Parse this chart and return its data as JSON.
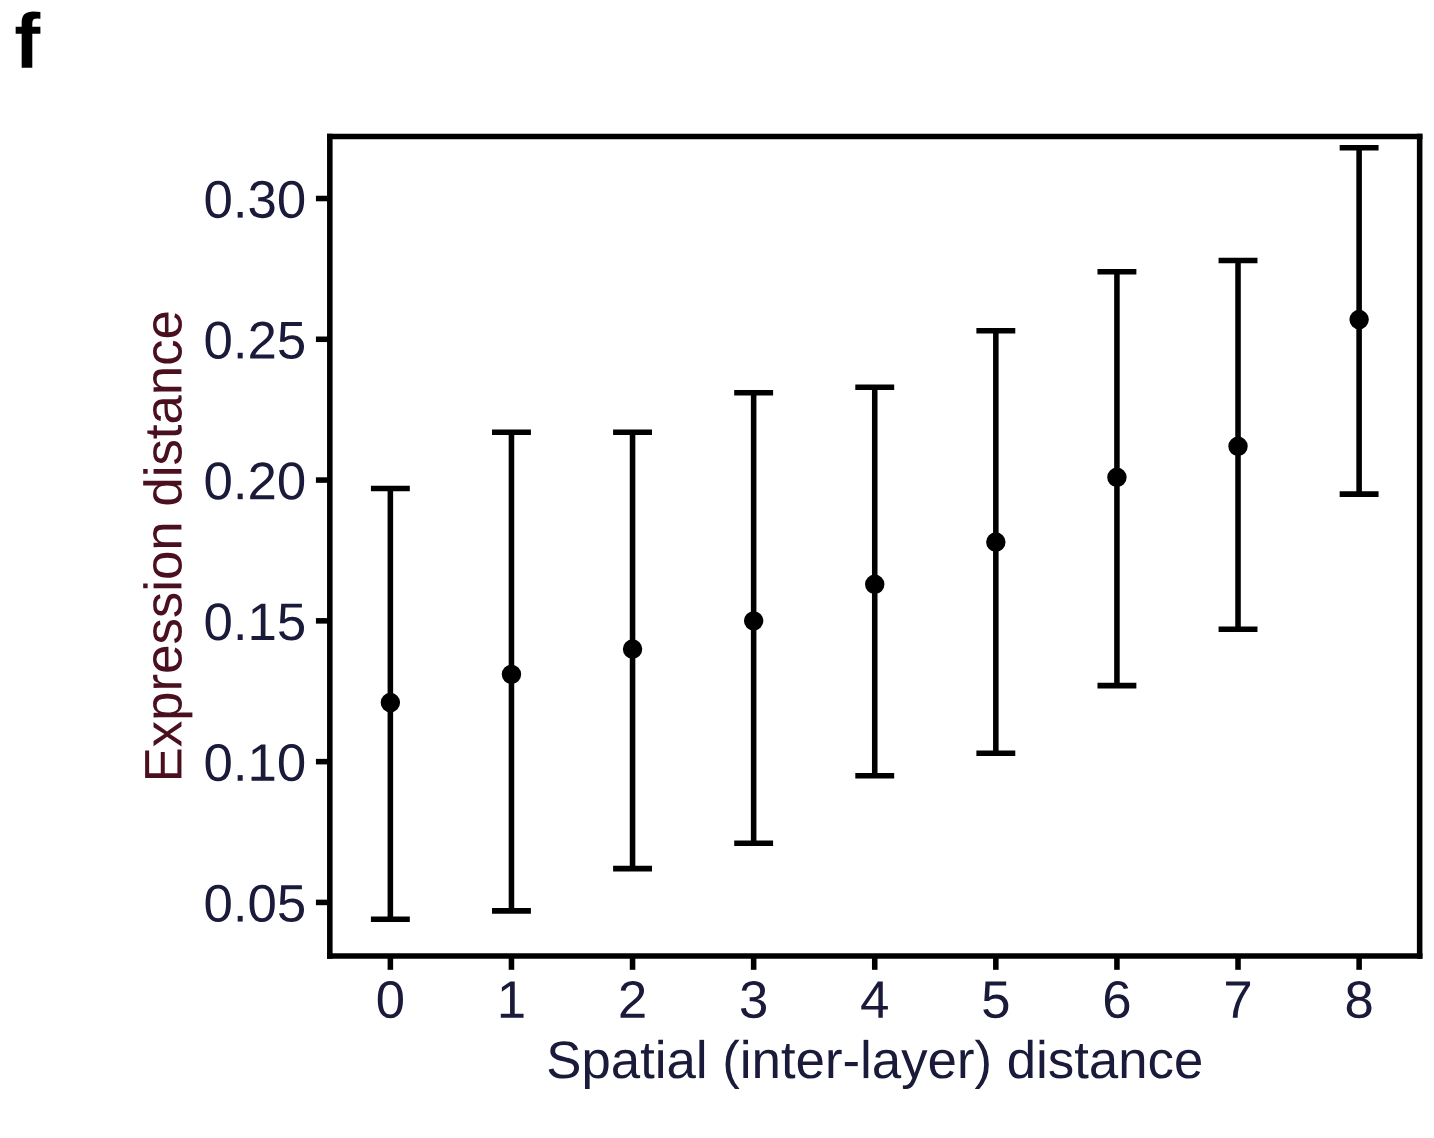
{
  "chart_data": {
    "type": "scatter",
    "xlabel": "Spatial (inter-layer) distance",
    "ylabel": "Expression distance",
    "annotations": [
      "f"
    ],
    "categories": [
      "0",
      "1",
      "2",
      "3",
      "4",
      "5",
      "6",
      "7",
      "8"
    ],
    "series": [
      {
        "color": "#000000",
        "values": [
          0.121,
          0.131,
          0.14,
          0.15,
          0.163,
          0.178,
          0.201,
          0.212,
          0.257
        ],
        "errors": [
          [
            0.044,
            0.197
          ],
          [
            0.047,
            0.217
          ],
          [
            0.062,
            0.217
          ],
          [
            0.071,
            0.231
          ],
          [
            0.095,
            0.233
          ],
          [
            0.103,
            0.253
          ],
          [
            0.127,
            0.274
          ],
          [
            0.147,
            0.278
          ],
          [
            0.195,
            0.318
          ]
        ]
      }
    ],
    "ylim": [
      0.031,
      0.322
    ],
    "yticks": [
      {
        "value": 0.05,
        "label": "0.05"
      },
      {
        "value": 0.1,
        "label": "0.10"
      },
      {
        "value": 0.15,
        "label": "0.15"
      },
      {
        "value": 0.2,
        "label": "0.20"
      },
      {
        "value": 0.25,
        "label": "0.25"
      },
      {
        "value": 0.3,
        "label": "0.30"
      }
    ],
    "grid": false,
    "legend": false,
    "marker": "circle"
  }
}
